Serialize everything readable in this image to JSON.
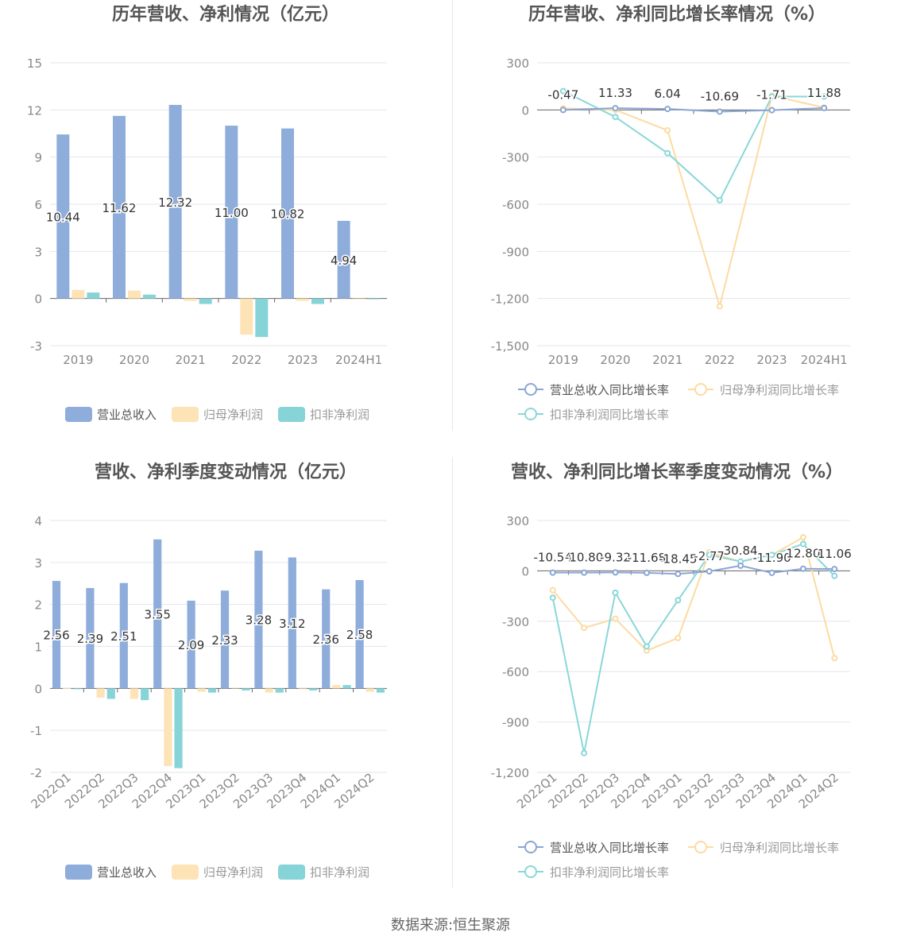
{
  "colors": {
    "revenue": "#8eaddb",
    "net_profit": "#fde3b5",
    "deducted_profit": "#87d4d8",
    "revenue_line": "#8aa6d4",
    "net_profit_line": "#fcdba3",
    "deducted_profit_line": "#8ad7d9",
    "title": "#555555",
    "axis_text": "#888888",
    "grid": "#e3e6ee"
  },
  "footer": {
    "source_label": "数据来源:",
    "source_value": "恒生聚源"
  },
  "chart_data": [
    {
      "type": "bar",
      "title": "历年营收、净利情况（亿元）",
      "categories": [
        "2019",
        "2020",
        "2021",
        "2022",
        "2023",
        "2024H1"
      ],
      "ylim": [
        -3,
        15
      ],
      "yticks": [
        -3,
        0,
        3,
        6,
        9,
        12,
        15
      ],
      "ytick_labels": [
        "-3",
        "0",
        "3",
        "6",
        "9",
        "12",
        "15"
      ],
      "grid": true,
      "legend_position": "bottom",
      "series": [
        {
          "name": "营业总收入",
          "values": [
            10.44,
            11.62,
            12.32,
            11.0,
            10.82,
            4.94
          ],
          "labels": [
            "10.44",
            "11.62",
            "12.32",
            "11.00",
            "10.82",
            "4.94"
          ]
        },
        {
          "name": "归母净利润",
          "values": [
            0.55,
            0.5,
            -0.15,
            -2.3,
            -0.15,
            -0.05
          ]
        },
        {
          "name": "扣非净利润",
          "values": [
            0.38,
            0.25,
            -0.35,
            -2.45,
            -0.35,
            -0.05
          ]
        }
      ]
    },
    {
      "type": "line",
      "title": "历年营收、净利同比增长率情况（%）",
      "categories": [
        "2019",
        "2020",
        "2021",
        "2022",
        "2023",
        "2024H1"
      ],
      "ylim": [
        -1500,
        300
      ],
      "yticks": [
        -1500,
        -1200,
        -900,
        -600,
        -300,
        0,
        300
      ],
      "ytick_labels": [
        "-1,500",
        "-1,200",
        "-900",
        "-600",
        "-300",
        "0",
        "300"
      ],
      "grid": true,
      "legend_position": "bottom",
      "series": [
        {
          "name": "营业总收入同比增长率",
          "values": [
            -0.47,
            11.33,
            6.04,
            -10.69,
            -1.71,
            11.88
          ],
          "labels": [
            "-0.47",
            "11.33",
            "6.04",
            "-10.69",
            "-1.71",
            "11.88"
          ]
        },
        {
          "name": "归母净利润同比增长率",
          "values": [
            10,
            0,
            -130,
            -1250,
            90,
            15
          ]
        },
        {
          "name": "扣非净利润同比增长率",
          "values": [
            120,
            -45,
            -275,
            -575,
            85,
            85
          ]
        }
      ]
    },
    {
      "type": "bar",
      "title": "营收、净利季度变动情况（亿元）",
      "categories": [
        "2022Q1",
        "2022Q2",
        "2022Q3",
        "2022Q4",
        "2023Q1",
        "2023Q2",
        "2023Q3",
        "2023Q4",
        "2024Q1",
        "2024Q2"
      ],
      "ylim": [
        -2,
        4
      ],
      "yticks": [
        -2,
        -1,
        0,
        1,
        2,
        3,
        4
      ],
      "ytick_labels": [
        "-2",
        "-1",
        "0",
        "1",
        "2",
        "3",
        "4"
      ],
      "grid": true,
      "legend_position": "bottom",
      "series": [
        {
          "name": "营业总收入",
          "values": [
            2.56,
            2.39,
            2.51,
            3.55,
            2.09,
            2.33,
            3.28,
            3.12,
            2.36,
            2.58
          ],
          "labels": [
            "2.56",
            "2.39",
            "2.51",
            "3.55",
            "2.09",
            "2.33",
            "3.28",
            "3.12",
            "2.36",
            "2.58"
          ]
        },
        {
          "name": "归母净利润",
          "values": [
            0.01,
            -0.22,
            -0.25,
            -1.85,
            -0.08,
            0.02,
            -0.1,
            -0.02,
            0.08,
            -0.08
          ]
        },
        {
          "name": "扣非净利润",
          "values": [
            -0.02,
            -0.25,
            -0.28,
            -1.9,
            -0.1,
            -0.05,
            -0.1,
            -0.05,
            0.08,
            -0.1
          ]
        }
      ]
    },
    {
      "type": "line",
      "title": "营收、净利同比增长率季度变动情况（%）",
      "categories": [
        "2022Q1",
        "2022Q2",
        "2022Q3",
        "2022Q4",
        "2023Q1",
        "2023Q2",
        "2023Q3",
        "2023Q4",
        "2024Q1",
        "2024Q2"
      ],
      "ylim": [
        -1200,
        300
      ],
      "yticks": [
        -1200,
        -900,
        -600,
        -300,
        0,
        300
      ],
      "ytick_labels": [
        "-1,200",
        "-900",
        "-600",
        "-300",
        "0",
        "300"
      ],
      "grid": true,
      "legend_position": "bottom",
      "series": [
        {
          "name": "营业总收入同比增长率",
          "values": [
            -10.54,
            -10.8,
            -9.32,
            -11.68,
            -18.45,
            -2.77,
            30.84,
            -11.9,
            12.8,
            11.06
          ],
          "labels": [
            "-10.54",
            "-10.80",
            "-9.32",
            "-11.68",
            "-18.45",
            "-2.77",
            "30.84",
            "-11.90",
            "12.80",
            "11.06"
          ]
        },
        {
          "name": "归母净利润同比增长率",
          "values": [
            -115,
            -340,
            -285,
            -475,
            -400,
            110,
            55,
            95,
            200,
            -520
          ]
        },
        {
          "name": "扣非净利润同比增长率",
          "values": [
            -160,
            -1085,
            -130,
            -450,
            -175,
            95,
            55,
            95,
            160,
            -30
          ]
        }
      ]
    }
  ]
}
